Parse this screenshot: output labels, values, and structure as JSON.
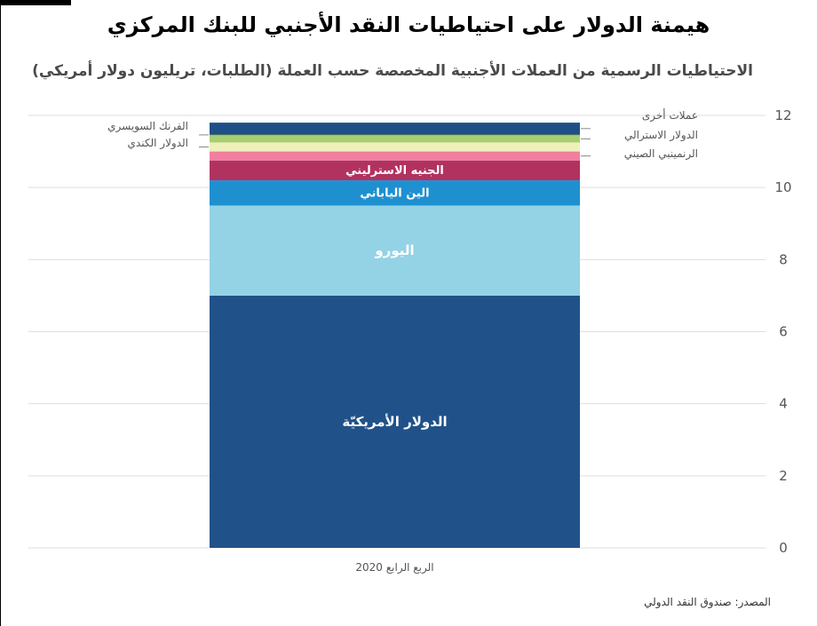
{
  "chart_data": {
    "type": "bar",
    "stacked": true,
    "title": "هيمنة الدولار على احتياطيات النقد الأجنبي للبنك المركزي",
    "subtitle": "الاحتياطيات الرسمية من العملات الأجنبية المخصصة حسب العملة (الطلبات، تريليون دولار أمريكي)",
    "categories": [
      "الربع الرابع 2020"
    ],
    "ylim": [
      0,
      12
    ],
    "yticks": [
      0,
      2,
      4,
      6,
      8,
      10,
      12
    ],
    "grid": true,
    "source": "المصدر: صندوق النقد الدولي",
    "series": [
      {
        "name": "الدولار الأمريكيّة",
        "values": [
          7.0
        ],
        "color": "#205289",
        "label_position": "inside"
      },
      {
        "name": "اليورو",
        "values": [
          2.5
        ],
        "color": "#94d2e6",
        "label_position": "inside"
      },
      {
        "name": "الين الياباني",
        "values": [
          0.7
        ],
        "color": "#1e90d0",
        "label_position": "inside"
      },
      {
        "name": "الجنيه الاسترليني",
        "values": [
          0.55
        ],
        "color": "#b2325f",
        "label_position": "inside"
      },
      {
        "name": "الرنمينبي الصيني",
        "values": [
          0.25
        ],
        "color": "#f17fa0",
        "label_position": "right"
      },
      {
        "name": "الدولار الكندي",
        "values": [
          0.25
        ],
        "color": "#eef0b9",
        "label_position": "left"
      },
      {
        "name": "الدولار الاسترالي",
        "values": [
          0.2
        ],
        "color": "#a8cd72",
        "label_position": "right"
      },
      {
        "name": "الفرنك السويسري",
        "values": [
          0.02
        ],
        "color": "#6a8f3c",
        "label_position": "left"
      },
      {
        "name": "عملات أخرى",
        "values": [
          0.33
        ],
        "color": "#1f4f87",
        "label_position": "right"
      }
    ]
  }
}
